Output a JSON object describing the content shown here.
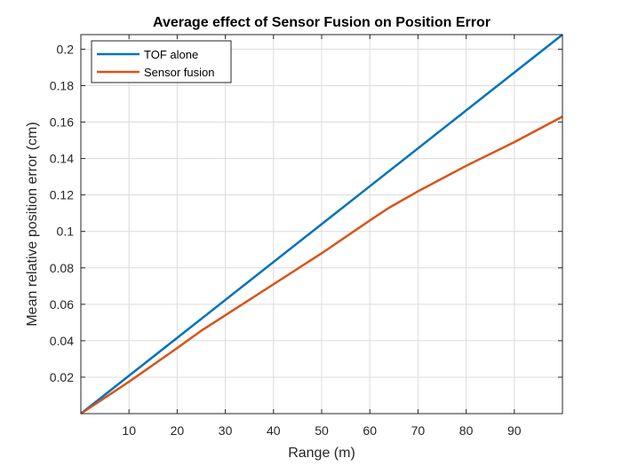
{
  "chart_data": {
    "type": "line",
    "title": "Average effect of Sensor Fusion on Position Error",
    "xlabel": "Range (m)",
    "ylabel": "Mean relative position error (cm)",
    "xlim": [
      0,
      100
    ],
    "ylim": [
      0,
      0.208
    ],
    "xticks": [
      10,
      20,
      30,
      40,
      50,
      60,
      70,
      80,
      90
    ],
    "yticks": [
      0.02,
      0.04,
      0.06,
      0.08,
      0.1,
      0.12,
      0.14,
      0.16,
      0.18,
      0.2
    ],
    "xtick_labels": [
      "10",
      "20",
      "30",
      "40",
      "50",
      "60",
      "70",
      "80",
      "90"
    ],
    "ytick_labels": [
      "0.02",
      "0.04",
      "0.06",
      "0.08",
      "0.1",
      "0.12",
      "0.14",
      "0.16",
      "0.18",
      "0.2"
    ],
    "grid": true,
    "legend_position": "top-left",
    "series": [
      {
        "name": "TOF alone",
        "color": "#0072BD",
        "x": [
          0,
          100
        ],
        "y": [
          0,
          0.208
        ]
      },
      {
        "name": "Sensor fusion",
        "color": "#D95319",
        "x": [
          0,
          10,
          20,
          25,
          30,
          40,
          50,
          60,
          64,
          70,
          80,
          90,
          100
        ],
        "y": [
          0,
          0.0175,
          0.036,
          0.0455,
          0.054,
          0.071,
          0.088,
          0.106,
          0.113,
          0.122,
          0.136,
          0.149,
          0.163
        ]
      }
    ]
  }
}
